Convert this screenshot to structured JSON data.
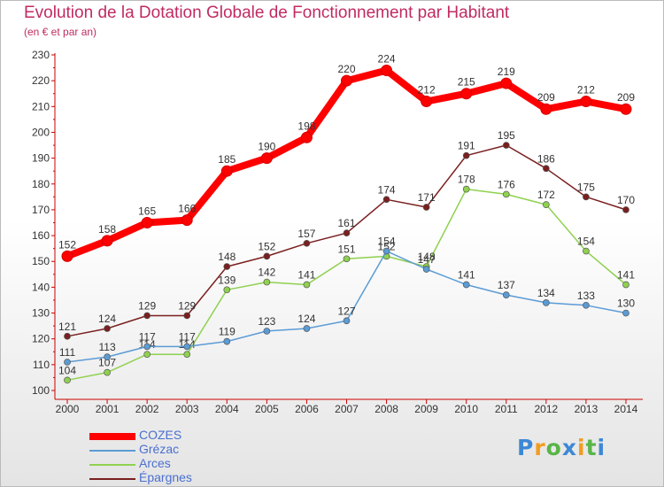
{
  "chart_data": {
    "type": "line",
    "title": "Evolution de la Dotation Globale de Fonctionnement par Habitant",
    "subtitle": "(en € et par an)",
    "x": [
      "2000",
      "2001",
      "2002",
      "2003",
      "2004",
      "2005",
      "2006",
      "2007",
      "2008",
      "2009",
      "2010",
      "2011",
      "2012",
      "2013",
      "2014"
    ],
    "ylim": [
      100,
      230
    ],
    "yticks": [
      100,
      110,
      120,
      130,
      140,
      150,
      160,
      170,
      180,
      190,
      200,
      210,
      220,
      230
    ],
    "grid": false,
    "legend_position": "bottom-left",
    "series": [
      {
        "name": "COZES",
        "color": "#ff0000",
        "values": [
          152,
          158,
          165,
          166,
          185,
          190,
          198,
          220,
          224,
          212,
          215,
          219,
          209,
          212,
          209
        ]
      },
      {
        "name": "Grézac",
        "color": "#5b9bd5",
        "values": [
          111,
          113,
          117,
          117,
          119,
          123,
          124,
          127,
          154,
          147,
          141,
          137,
          134,
          133,
          130
        ]
      },
      {
        "name": "Arces",
        "color": "#8fd14f",
        "values": [
          104,
          107,
          114,
          114,
          139,
          142,
          141,
          151,
          152,
          148,
          178,
          176,
          172,
          154,
          141
        ]
      },
      {
        "name": "Épargnes",
        "color": "#7a1f1f",
        "values": [
          121,
          124,
          129,
          129,
          148,
          152,
          157,
          161,
          174,
          171,
          191,
          195,
          186,
          175,
          170
        ]
      }
    ]
  },
  "brand": {
    "letters": [
      "P",
      "r",
      "o",
      "x",
      "i",
      "t",
      "i"
    ],
    "colors": [
      "#3d88d6",
      "#f29c1f",
      "#59b548",
      "#3d88d6",
      "#f29c1f",
      "#59b548",
      "#3d88d6"
    ]
  }
}
